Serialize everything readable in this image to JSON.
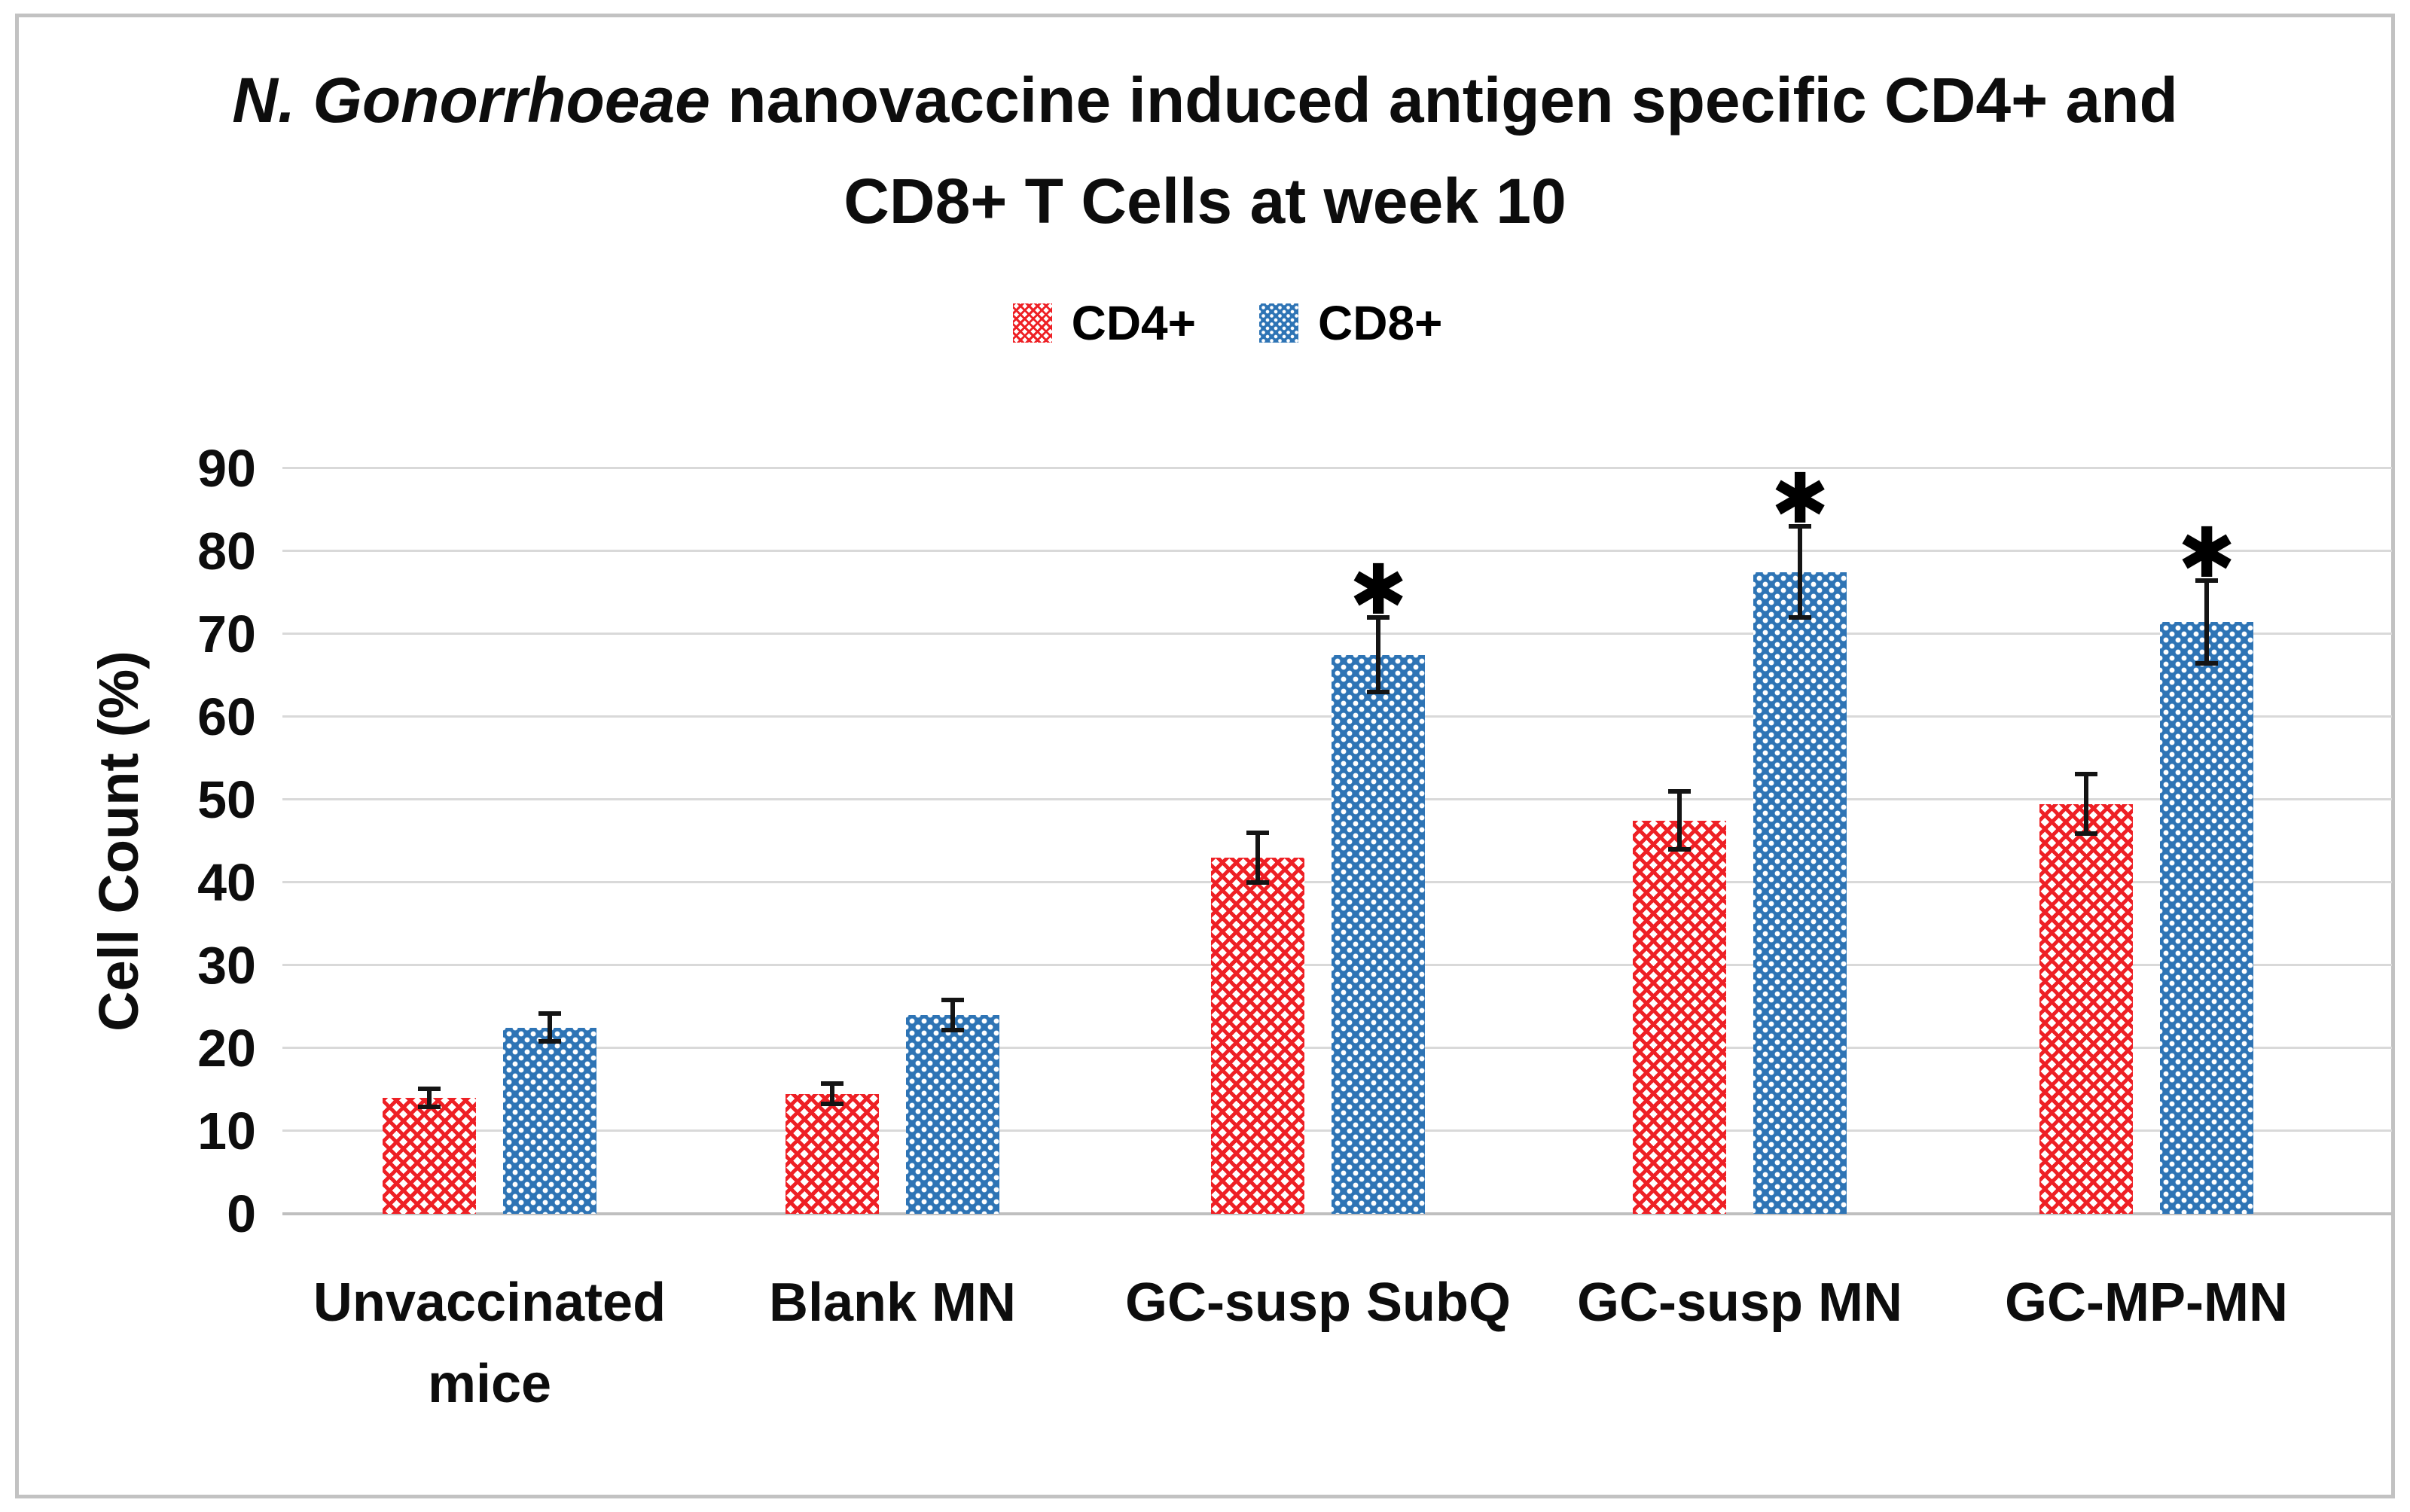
{
  "frame": {
    "border_color": "#c2c2c2",
    "background": "#ffffff"
  },
  "title": {
    "italic_part": "N. Gonorrhoeae",
    "line1_rest": " nanovaccine induced antigen specific CD4+ and",
    "line2": "CD8+ T Cells at week 10"
  },
  "legend": {
    "items": [
      {
        "label": "CD4+",
        "swatch": "red-crosshatch"
      },
      {
        "label": "CD8+",
        "swatch": "blue-dots"
      }
    ]
  },
  "y_axis": {
    "title": "Cell Count (%)"
  },
  "chart_data": {
    "type": "bar",
    "title": "N. Gonorrhoeae nanovaccine induced antigen specific CD4+ and CD8+ T Cells at week 10",
    "categories": [
      "Unvaccinated mice",
      "Blank MN",
      "GC-susp SubQ",
      "GC-susp MN",
      "GC-MP-MN"
    ],
    "series": [
      {
        "name": "CD4+",
        "color": "#ee2025",
        "pattern": "diagonal-crosshatch",
        "values": [
          14,
          14.5,
          43,
          47.5,
          49.5
        ],
        "errors": [
          1.1,
          1.2,
          3,
          3.5,
          3.6
        ],
        "significance": [
          false,
          false,
          false,
          false,
          false
        ]
      },
      {
        "name": "CD8+",
        "color": "#2e74b5",
        "pattern": "dotted-grid",
        "values": [
          22.5,
          24,
          67.5,
          77.5,
          71.5
        ],
        "errors": [
          1.7,
          1.8,
          4.5,
          5.5,
          5
        ],
        "significance": [
          false,
          false,
          true,
          true,
          true
        ]
      }
    ],
    "ylabel": "Cell Count (%)",
    "xlabel": "",
    "ylim": [
      0,
      90
    ],
    "yticks": [
      0,
      10,
      20,
      30,
      40,
      50,
      60,
      70,
      80,
      90
    ],
    "grid": true,
    "legend_position": "top",
    "significance_marker": "✱",
    "gridline_color": "#d9d9d9",
    "error_bar_color": "#141414"
  }
}
